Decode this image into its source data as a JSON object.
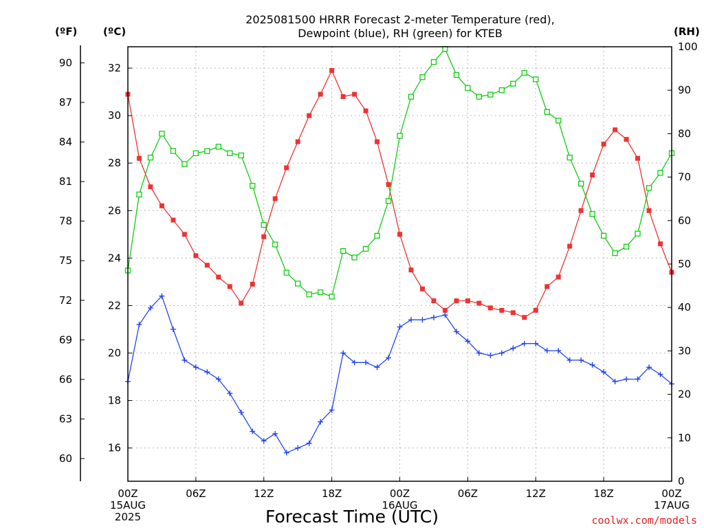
{
  "title_lines": [
    "2025081500 HRRR Forecast 2-meter Temperature (red),",
    "Dewpoint (blue), RH (green) for KTEB"
  ],
  "credit": "coolwx.com/models",
  "colors": {
    "temperature": "#ee3333",
    "dewpoint": "#2244ee",
    "rh": "#11cc11",
    "credit": "#dd2222",
    "grid": "#b8b8b8"
  },
  "chart_data": {
    "type": "line",
    "xlabel": "Forecast Time (UTC)",
    "x_unit": "forecast hour",
    "x_range": [
      0,
      48
    ],
    "x_ticks": [
      {
        "hour": 0,
        "lines": [
          "00Z",
          "15AUG",
          "2025"
        ]
      },
      {
        "hour": 6,
        "lines": [
          "06Z"
        ]
      },
      {
        "hour": 12,
        "lines": [
          "12Z"
        ]
      },
      {
        "hour": 18,
        "lines": [
          "18Z"
        ]
      },
      {
        "hour": 24,
        "lines": [
          "00Z",
          "16AUG"
        ]
      },
      {
        "hour": 30,
        "lines": [
          "06Z"
        ]
      },
      {
        "hour": 36,
        "lines": [
          "12Z"
        ]
      },
      {
        "hour": 42,
        "lines": [
          "18Z"
        ]
      },
      {
        "hour": 48,
        "lines": [
          "00Z",
          "17AUG"
        ]
      }
    ],
    "axes": {
      "fahrenheit": {
        "label": "(ºF)",
        "ticks": [
          60,
          63,
          66,
          69,
          72,
          75,
          78,
          81,
          84,
          87,
          90
        ]
      },
      "celsius": {
        "label": "(ºC)",
        "range": [
          14.6,
          32.9
        ],
        "ticks": [
          16,
          18,
          20,
          22,
          24,
          26,
          28,
          30,
          32
        ]
      },
      "rh": {
        "label": "(RH)",
        "range": [
          0,
          100
        ],
        "ticks": [
          0,
          10,
          20,
          30,
          40,
          50,
          60,
          70,
          80,
          90,
          100
        ]
      }
    },
    "grid": true,
    "series": [
      {
        "key": "temperature",
        "axis": "celsius",
        "marker": "filled-square",
        "values": [
          30.9,
          28.2,
          27.0,
          26.2,
          25.6,
          25.0,
          24.1,
          23.7,
          23.2,
          22.8,
          22.1,
          22.9,
          24.9,
          26.5,
          27.8,
          28.9,
          30.0,
          30.9,
          31.9,
          30.8,
          30.9,
          30.2,
          28.9,
          27.1,
          25.0,
          23.5,
          22.7,
          22.2,
          21.8,
          22.2,
          22.2,
          22.1,
          21.9,
          21.8,
          21.7,
          21.5,
          21.8,
          22.8,
          23.2,
          24.5,
          26.0,
          27.5,
          28.8,
          29.4,
          29.0,
          28.2,
          26.0,
          24.6,
          23.4
        ]
      },
      {
        "key": "dewpoint",
        "axis": "celsius",
        "marker": "plus",
        "values": [
          18.8,
          21.2,
          21.9,
          22.4,
          21.0,
          19.7,
          19.4,
          19.2,
          18.9,
          18.3,
          17.5,
          16.7,
          16.3,
          16.6,
          15.8,
          16.0,
          16.2,
          17.1,
          17.6,
          20.0,
          19.6,
          19.6,
          19.4,
          19.8,
          21.1,
          21.4,
          21.4,
          21.5,
          21.6,
          20.9,
          20.5,
          20.0,
          19.9,
          20.0,
          20.2,
          20.4,
          20.4,
          20.1,
          20.1,
          19.7,
          19.7,
          19.5,
          19.2,
          18.8,
          18.9,
          18.9,
          19.4,
          19.1,
          18.7
        ]
      },
      {
        "key": "rh",
        "axis": "rh",
        "marker": "open-square",
        "values": [
          48.5,
          66,
          74.5,
          80,
          76,
          73,
          75.5,
          76,
          77,
          75.5,
          75,
          68,
          59,
          54.5,
          48,
          45.5,
          43,
          43.5,
          42.5,
          53,
          51.5,
          53.5,
          56.5,
          64.5,
          79.5,
          88.5,
          93,
          96.5,
          99.5,
          93.5,
          90.5,
          88.5,
          89,
          90,
          91.5,
          94,
          92.5,
          85,
          83,
          74.5,
          68.5,
          61.5,
          56.5,
          52.5,
          54,
          57,
          67.5,
          71,
          75.5
        ]
      }
    ]
  }
}
